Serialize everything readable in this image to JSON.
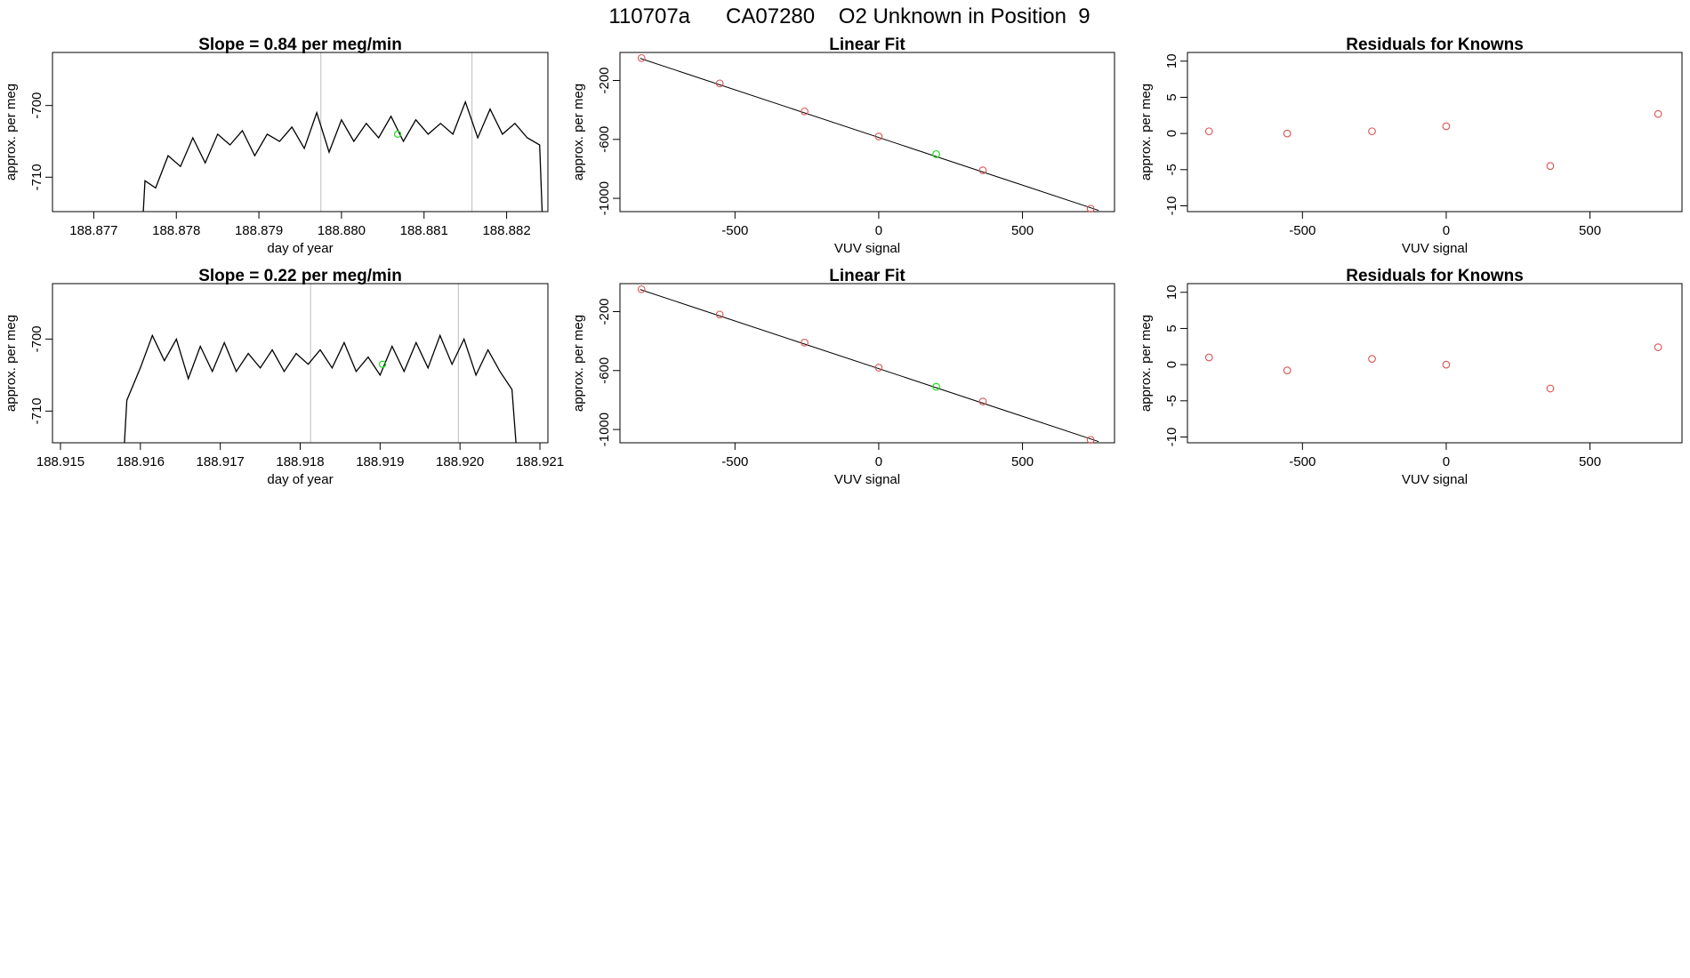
{
  "page_title": "110707a      CA07280    O2 Unknown in Position  9",
  "colors": {
    "line": "#000000",
    "known_point": "#d9534f",
    "unknown_point": "#22dd22",
    "vline": "#c8c8c8",
    "frame": "#000000"
  },
  "chart_data": [
    {
      "id": "ts-1",
      "type": "line",
      "title": "Slope =  0.84  per meg/min",
      "xlabel": "day of year",
      "ylabel": "approx. per meg",
      "xlim": [
        188.8765,
        188.8825
      ],
      "ylim": [
        -714.8,
        -692.6
      ],
      "xticks": [
        188.877,
        188.878,
        188.879,
        188.88,
        188.881,
        188.882
      ],
      "xtick_labels": [
        "188.877",
        "188.878",
        "188.879",
        "188.880",
        "188.881",
        "188.882"
      ],
      "yticks": [
        -710,
        -700
      ],
      "ytick_labels": [
        "-710",
        "-700"
      ],
      "vlines": [
        188.87975,
        188.88158
      ],
      "series": [
        {
          "x": [
            188.8776,
            188.87762,
            188.87775,
            188.8779,
            188.87805,
            188.8782,
            188.87835,
            188.8785,
            188.87865,
            188.8788,
            188.87895,
            188.8791,
            188.87925,
            188.8794,
            188.87955,
            188.8797,
            188.87985,
            188.88,
            188.88015,
            188.8803,
            188.88045,
            188.8806,
            188.88075,
            188.8809,
            188.88105,
            188.8812,
            188.88135,
            188.8815,
            188.88165,
            188.8818,
            188.88195,
            188.8821,
            188.88225,
            188.8824,
            188.88243
          ],
          "y": [
            -714.8,
            -710.5,
            -711.5,
            -707.0,
            -708.5,
            -704.5,
            -708.0,
            -704.0,
            -705.5,
            -703.5,
            -707.0,
            -704.0,
            -705.0,
            -703.0,
            -706.0,
            -701.0,
            -706.5,
            -702.0,
            -705.0,
            -702.5,
            -704.5,
            -701.5,
            -705.0,
            -702.0,
            -704.0,
            -702.5,
            -704.0,
            -699.5,
            -704.5,
            -700.5,
            -704.0,
            -702.5,
            -704.5,
            -705.5,
            -714.8
          ]
        }
      ],
      "marker": {
        "x": 188.88068,
        "y": -704.0
      }
    },
    {
      "id": "fit-1",
      "type": "scatter",
      "title": "Linear Fit",
      "xlabel": "VUV signal",
      "ylabel": "approx. per meg",
      "xlim": [
        -900,
        820
      ],
      "ylim": [
        -1090,
        -10
      ],
      "xticks": [
        -500,
        0,
        500
      ],
      "xtick_labels": [
        "-500",
        "0",
        "500"
      ],
      "yticks": [
        -1000,
        -600,
        -200
      ],
      "ytick_labels": [
        "-1000",
        "-600",
        "-200"
      ],
      "fit_line": {
        "x": [
          -830,
          765
        ],
        "y": [
          -50,
          -1082
        ]
      },
      "known_points": {
        "x": [
          -825,
          -553,
          -258,
          0,
          362,
          737
        ],
        "y": [
          -48,
          -220,
          -410,
          -580,
          -810,
          -1070
        ]
      },
      "unknown_point": {
        "x": 200,
        "y": -700
      }
    },
    {
      "id": "res-1",
      "type": "scatter",
      "title": "Residuals for Knowns",
      "xlabel": "VUV signal",
      "ylabel": "approx. per meg",
      "xlim": [
        -900,
        820
      ],
      "ylim": [
        -10.8,
        11.2
      ],
      "xticks": [
        -500,
        0,
        500
      ],
      "xtick_labels": [
        "-500",
        "0",
        "500"
      ],
      "yticks": [
        -10,
        -5,
        0,
        5,
        10
      ],
      "ytick_labels": [
        "-10",
        "-5",
        "0",
        "5",
        "10"
      ],
      "points": {
        "x": [
          -825,
          -553,
          -258,
          0,
          362,
          737
        ],
        "y": [
          0.3,
          0.0,
          0.3,
          1.0,
          -4.5,
          2.7
        ]
      }
    },
    {
      "id": "ts-2",
      "type": "line",
      "title": "Slope =  0.22  per meg/min",
      "xlabel": "day of year",
      "ylabel": "approx. per meg",
      "xlim": [
        188.9149,
        188.9211
      ],
      "ylim": [
        -714.4,
        -692.3
      ],
      "xticks": [
        188.915,
        188.916,
        188.917,
        188.918,
        188.919,
        188.92,
        188.921
      ],
      "xtick_labels": [
        "188.915",
        "188.916",
        "188.917",
        "188.918",
        "188.919",
        "188.920",
        "188.921"
      ],
      "yticks": [
        -710,
        -700
      ],
      "ytick_labels": [
        "-710",
        "-700"
      ],
      "vlines": [
        188.91813,
        188.91998
      ],
      "series": [
        {
          "x": [
            188.9158,
            188.91583,
            188.916,
            188.91615,
            188.9163,
            188.91645,
            188.9166,
            188.91675,
            188.9169,
            188.91705,
            188.9172,
            188.91735,
            188.9175,
            188.91765,
            188.9178,
            188.91795,
            188.9181,
            188.91825,
            188.9184,
            188.91855,
            188.9187,
            188.91885,
            188.919,
            188.91915,
            188.9193,
            188.91945,
            188.9196,
            188.91975,
            188.9199,
            188.92005,
            188.9202,
            188.92035,
            188.9205,
            188.92065,
            188.9207
          ],
          "y": [
            -714.4,
            -708.5,
            -704.0,
            -699.5,
            -703.0,
            -700.0,
            -705.5,
            -701.0,
            -704.5,
            -700.5,
            -704.5,
            -702.0,
            -704.0,
            -701.5,
            -704.5,
            -702.0,
            -703.5,
            -701.5,
            -704.0,
            -700.5,
            -704.5,
            -702.5,
            -705.0,
            -701.0,
            -704.5,
            -700.5,
            -704.0,
            -699.5,
            -703.5,
            -700.0,
            -705.0,
            -701.5,
            -704.5,
            -707.0,
            -714.4
          ]
        }
      ],
      "marker": {
        "x": 188.91903,
        "y": -703.5
      }
    },
    {
      "id": "fit-2",
      "type": "scatter",
      "title": "Linear Fit",
      "xlabel": "VUV signal",
      "ylabel": "approx. per meg",
      "xlim": [
        -900,
        820
      ],
      "ylim": [
        -1090,
        -10
      ],
      "xticks": [
        -500,
        0,
        500
      ],
      "xtick_labels": [
        "-500",
        "0",
        "500"
      ],
      "yticks": [
        -1000,
        -600,
        -200
      ],
      "ytick_labels": [
        "-1000",
        "-600",
        "-200"
      ],
      "fit_line": {
        "x": [
          -830,
          765
        ],
        "y": [
          -50,
          -1082
        ]
      },
      "known_points": {
        "x": [
          -825,
          -553,
          -258,
          0,
          362,
          737
        ],
        "y": [
          -48,
          -220,
          -410,
          -580,
          -810,
          -1070
        ]
      },
      "unknown_point": {
        "x": 200,
        "y": -710
      }
    },
    {
      "id": "res-2",
      "type": "scatter",
      "title": "Residuals for Knowns",
      "xlabel": "VUV signal",
      "ylabel": "approx. per meg",
      "xlim": [
        -900,
        820
      ],
      "ylim": [
        -10.8,
        11.2
      ],
      "xticks": [
        -500,
        0,
        500
      ],
      "xtick_labels": [
        "-500",
        "0",
        "500"
      ],
      "yticks": [
        -10,
        -5,
        0,
        5,
        10
      ],
      "ytick_labels": [
        "-10",
        "-5",
        "0",
        "5",
        "10"
      ],
      "points": {
        "x": [
          -825,
          -553,
          -258,
          0,
          362,
          737
        ],
        "y": [
          1.0,
          -0.8,
          0.8,
          0.0,
          -3.3,
          2.4
        ]
      }
    }
  ]
}
